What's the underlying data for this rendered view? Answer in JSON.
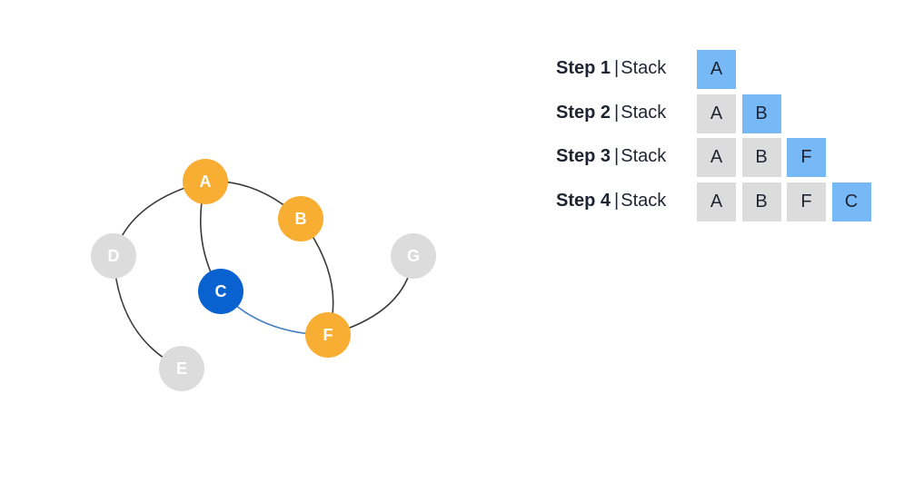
{
  "colors": {
    "visited": "#f8ad33",
    "current": "#0a62d1",
    "unvisited": "#dcdcdc",
    "stack_top": "#77b8f7",
    "stack_cell": "#dcdcdc",
    "edge": "#3a3a3a",
    "edge_active": "#3f7dc4"
  },
  "graph": {
    "nodes": [
      {
        "id": "A",
        "state": "visited"
      },
      {
        "id": "B",
        "state": "visited"
      },
      {
        "id": "C",
        "state": "current"
      },
      {
        "id": "D",
        "state": "unvisited"
      },
      {
        "id": "E",
        "state": "unvisited"
      },
      {
        "id": "F",
        "state": "visited"
      },
      {
        "id": "G",
        "state": "unvisited"
      }
    ],
    "edges": [
      {
        "from": "A",
        "to": "B",
        "active": false
      },
      {
        "from": "A",
        "to": "C",
        "active": false
      },
      {
        "from": "A",
        "to": "D",
        "active": false
      },
      {
        "from": "B",
        "to": "F",
        "active": false
      },
      {
        "from": "C",
        "to": "F",
        "active": true
      },
      {
        "from": "D",
        "to": "E",
        "active": false
      },
      {
        "from": "F",
        "to": "G",
        "active": false
      }
    ]
  },
  "steps": [
    {
      "title": "Step 1",
      "separator": "|",
      "label": "Stack",
      "stack": [
        "A"
      ]
    },
    {
      "title": "Step 2",
      "separator": "|",
      "label": "Stack",
      "stack": [
        "A",
        "B"
      ]
    },
    {
      "title": "Step 3",
      "separator": "|",
      "label": "Stack",
      "stack": [
        "A",
        "B",
        "F"
      ]
    },
    {
      "title": "Step 4",
      "separator": "|",
      "label": "Stack",
      "stack": [
        "A",
        "B",
        "F",
        "C"
      ]
    }
  ]
}
